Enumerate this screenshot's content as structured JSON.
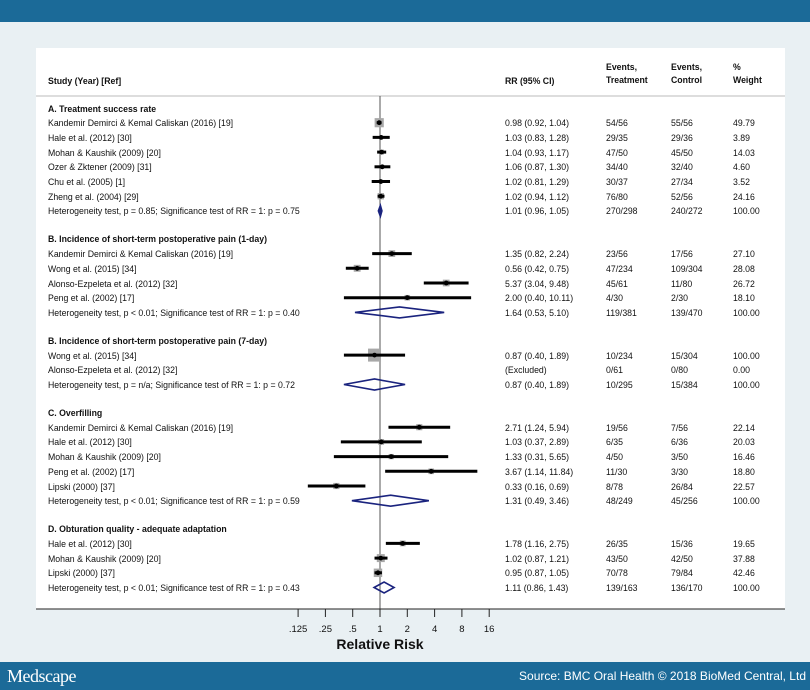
{
  "header": {
    "study": "Study (Year) [Ref]",
    "rr": "RR (95% CI)",
    "events_treatment": "Events,\nTreatment",
    "events_control": "Events,\nControl",
    "weight": "%\nWeight"
  },
  "footer": {
    "logo": "Medscape",
    "source": "Source: BMC Oral Health © 2018 BioMed Central, Ltd"
  },
  "colors": {
    "banner": "#1b6a98",
    "diamond": "#1a237e",
    "background": "#e9f0f3"
  },
  "chart_data": {
    "type": "forest",
    "xlabel": "Relative Risk",
    "xscale": "log2",
    "xticks": [
      0.125,
      0.25,
      0.5,
      1,
      2,
      4,
      8,
      16
    ],
    "xtick_labels": [
      ".125",
      ".25",
      ".5",
      "1",
      "2",
      "4",
      "8",
      "16"
    ],
    "reference_line": 1,
    "sections": [
      {
        "title": "A. Treatment success rate",
        "studies": [
          {
            "study": "Kandemir Demirci & Kemal Caliskan (2016) [19]",
            "rr": 0.98,
            "lo": 0.92,
            "hi": 1.04,
            "rr_text": "0.98 (0.92, 1.04)",
            "events_treatment": "54/56",
            "events_control": "55/56",
            "weight": "49.79"
          },
          {
            "study": "Hale et al. (2012) [30]",
            "rr": 1.03,
            "lo": 0.83,
            "hi": 1.28,
            "rr_text": "1.03 (0.83, 1.28)",
            "events_treatment": "29/35",
            "events_control": "29/36",
            "weight": "3.89"
          },
          {
            "study": "Mohan & Kaushik (2009) [20]",
            "rr": 1.04,
            "lo": 0.93,
            "hi": 1.17,
            "rr_text": "1.04 (0.93, 1.17)",
            "events_treatment": "47/50",
            "events_control": "45/50",
            "weight": "14.03"
          },
          {
            "study": "Ozer & Zktener (2009) [31]",
            "rr": 1.06,
            "lo": 0.87,
            "hi": 1.3,
            "rr_text": "1.06 (0.87, 1.30)",
            "events_treatment": "34/40",
            "events_control": "32/40",
            "weight": "4.60"
          },
          {
            "study": "Chu et al. (2005) [1]",
            "rr": 1.02,
            "lo": 0.81,
            "hi": 1.29,
            "rr_text": "1.02 (0.81, 1.29)",
            "events_treatment": "30/37",
            "events_control": "27/34",
            "weight": "3.52"
          },
          {
            "study": "Zheng et al. (2004) [29]",
            "rr": 1.02,
            "lo": 0.94,
            "hi": 1.12,
            "rr_text": "1.02 (0.94, 1.12)",
            "events_treatment": "76/80",
            "events_control": "52/56",
            "weight": "24.16"
          }
        ],
        "summary": {
          "label": "Heterogeneity test, p = 0.85; Significance test of RR = 1: p = 0.75",
          "rr": 1.01,
          "lo": 0.96,
          "hi": 1.05,
          "rr_text": "1.01 (0.96, 1.05)",
          "events_treatment": "270/298",
          "events_control": "240/272",
          "weight": "100.00"
        }
      },
      {
        "title": "B. Incidence of short-term postoperative pain (1-day)",
        "studies": [
          {
            "study": "Kandemir Demirci & Kemal Caliskan (2016) [19]",
            "rr": 1.35,
            "lo": 0.82,
            "hi": 2.24,
            "rr_text": "1.35 (0.82, 2.24)",
            "events_treatment": "23/56",
            "events_control": "17/56",
            "weight": "27.10"
          },
          {
            "study": "Wong et al. (2015) [34]",
            "rr": 0.56,
            "lo": 0.42,
            "hi": 0.75,
            "rr_text": "0.56 (0.42, 0.75)",
            "events_treatment": "47/234",
            "events_control": "109/304",
            "weight": "28.08"
          },
          {
            "study": "Alonso-Ezpeleta et al. (2012) [32]",
            "rr": 5.37,
            "lo": 3.04,
            "hi": 9.48,
            "rr_text": "5.37 (3.04, 9.48)",
            "events_treatment": "45/61",
            "events_control": "11/80",
            "weight": "26.72"
          },
          {
            "study": "Peng et al. (2002) [17]",
            "rr": 2.0,
            "lo": 0.4,
            "hi": 10.11,
            "rr_text": "2.00 (0.40, 10.11)",
            "events_treatment": "4/30",
            "events_control": "2/30",
            "weight": "18.10"
          }
        ],
        "summary": {
          "label": "Heterogeneity test, p < 0.01; Significance test of RR = 1: p = 0.40",
          "rr": 1.64,
          "lo": 0.53,
          "hi": 5.1,
          "rr_text": "1.64 (0.53, 5.10)",
          "events_treatment": "119/381",
          "events_control": "139/470",
          "weight": "100.00"
        }
      },
      {
        "title": "B. Incidence of short-term postoperative pain (7-day)",
        "studies": [
          {
            "study": "Wong et al. (2015) [34]",
            "rr": 0.87,
            "lo": 0.4,
            "hi": 1.89,
            "rr_text": "0.87 (0.40, 1.89)",
            "events_treatment": "10/234",
            "events_control": "15/304",
            "weight": "100.00"
          },
          {
            "study": "Alonso-Ezpeleta et al. (2012) [32]",
            "rr": null,
            "lo": null,
            "hi": null,
            "rr_text": "(Excluded)",
            "events_treatment": "0/61",
            "events_control": "0/80",
            "weight": "0.00"
          }
        ],
        "summary": {
          "label": "Heterogeneity test, p = n/a; Significance test of RR = 1: p = 0.72",
          "rr": 0.87,
          "lo": 0.4,
          "hi": 1.89,
          "rr_text": "0.87 (0.40, 1.89)",
          "events_treatment": "10/295",
          "events_control": "15/384",
          "weight": "100.00"
        }
      },
      {
        "title": "C. Overfilling",
        "studies": [
          {
            "study": "Kandemir Demirci & Kemal Caliskan (2016) [19]",
            "rr": 2.71,
            "lo": 1.24,
            "hi": 5.94,
            "rr_text": "2.71 (1.24, 5.94)",
            "events_treatment": "19/56",
            "events_control": "7/56",
            "weight": "22.14"
          },
          {
            "study": "Hale et al. (2012) [30]",
            "rr": 1.03,
            "lo": 0.37,
            "hi": 2.89,
            "rr_text": "1.03 (0.37, 2.89)",
            "events_treatment": "6/35",
            "events_control": "6/36",
            "weight": "20.03"
          },
          {
            "study": "Mohan & Kaushik (2009) [20]",
            "rr": 1.33,
            "lo": 0.31,
            "hi": 5.65,
            "rr_text": "1.33 (0.31, 5.65)",
            "events_treatment": "4/50",
            "events_control": "3/50",
            "weight": "16.46"
          },
          {
            "study": "Peng et al. (2002) [17]",
            "rr": 3.67,
            "lo": 1.14,
            "hi": 11.84,
            "rr_text": "3.67 (1.14, 11.84)",
            "events_treatment": "11/30",
            "events_control": "3/30",
            "weight": "18.80"
          },
          {
            "study": "Lipski (2000) [37]",
            "rr": 0.33,
            "lo": 0.16,
            "hi": 0.69,
            "rr_text": "0.33 (0.16, 0.69)",
            "events_treatment": "8/78",
            "events_control": "26/84",
            "weight": "22.57"
          }
        ],
        "summary": {
          "label": "Heterogeneity test, p < 0.01; Significance test of RR = 1: p = 0.59",
          "rr": 1.31,
          "lo": 0.49,
          "hi": 3.46,
          "rr_text": "1.31 (0.49, 3.46)",
          "events_treatment": "48/249",
          "events_control": "45/256",
          "weight": "100.00"
        }
      },
      {
        "title": "D. Obturation quality - adequate adaptation",
        "studies": [
          {
            "study": "Hale et al. (2012) [30]",
            "rr": 1.78,
            "lo": 1.16,
            "hi": 2.75,
            "rr_text": "1.78 (1.16, 2.75)",
            "events_treatment": "26/35",
            "events_control": "15/36",
            "weight": "19.65"
          },
          {
            "study": "Mohan & Kaushik (2009) [20]",
            "rr": 1.02,
            "lo": 0.87,
            "hi": 1.21,
            "rr_text": "1.02 (0.87, 1.21)",
            "events_treatment": "43/50",
            "events_control": "42/50",
            "weight": "37.88"
          },
          {
            "study": "Lipski (2000) [37]",
            "rr": 0.95,
            "lo": 0.87,
            "hi": 1.05,
            "rr_text": "0.95 (0.87, 1.05)",
            "events_treatment": "70/78",
            "events_control": "79/84",
            "weight": "42.46"
          }
        ],
        "summary": {
          "label": "Heterogeneity test, p < 0.01; Significance test of RR = 1: p = 0.43",
          "rr": 1.11,
          "lo": 0.86,
          "hi": 1.43,
          "rr_text": "1.11 (0.86, 1.43)",
          "events_treatment": "139/163",
          "events_control": "136/170",
          "weight": "100.00"
        }
      }
    ]
  }
}
